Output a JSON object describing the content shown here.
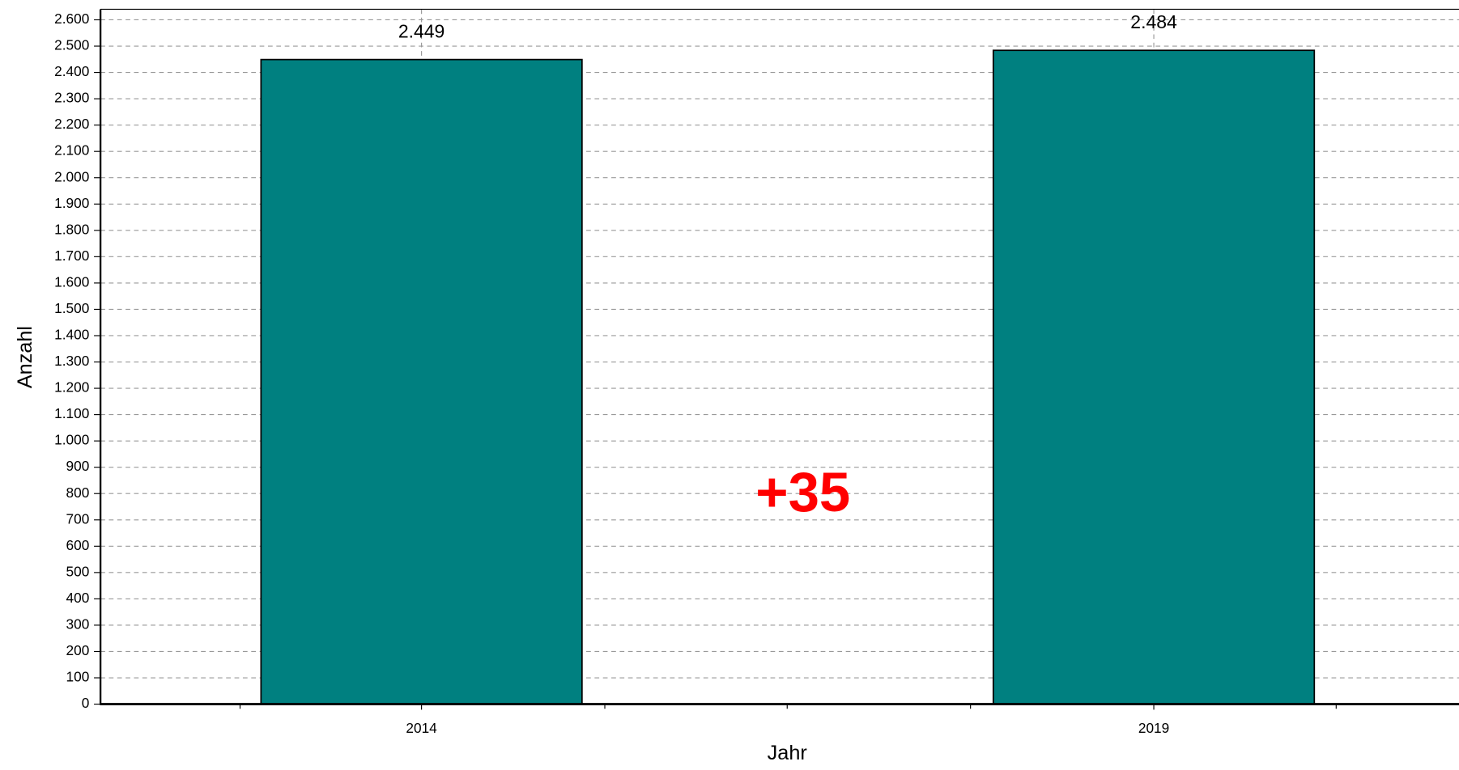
{
  "chart_data": {
    "type": "bar",
    "categories": [
      "2014",
      "2019"
    ],
    "values": [
      2449,
      2484
    ],
    "value_labels": [
      "2.449",
      "2.484"
    ],
    "color": "#008080",
    "ylim": [
      0,
      2640
    ],
    "yticks": [
      0,
      100,
      200,
      300,
      400,
      500,
      600,
      700,
      800,
      900,
      {
        "value": 1000,
        "label": "1.000"
      },
      {
        "value": 1100,
        "label": "1.100"
      },
      {
        "value": 1200,
        "label": "1.200"
      },
      {
        "value": 1300,
        "label": "1.300"
      },
      {
        "value": 1400,
        "label": "1.400"
      },
      {
        "value": 1500,
        "label": "1.500"
      },
      {
        "value": 1600,
        "label": "1.600"
      },
      {
        "value": 1700,
        "label": "1.700"
      },
      {
        "value": 1800,
        "label": "1.800"
      },
      {
        "value": 1900,
        "label": "1.900"
      },
      {
        "value": 2000,
        "label": "2.000"
      },
      {
        "value": 2100,
        "label": "2.100"
      },
      {
        "value": 2200,
        "label": "2.200"
      },
      {
        "value": 2300,
        "label": "2.300"
      },
      {
        "value": 2400,
        "label": "2.400"
      },
      {
        "value": 2500,
        "label": "2.500"
      },
      {
        "value": 2600,
        "label": "2.600"
      }
    ],
    "grid": true,
    "xlabel": "Jahr",
    "ylabel": "Anzahl",
    "annotation": "+35"
  }
}
